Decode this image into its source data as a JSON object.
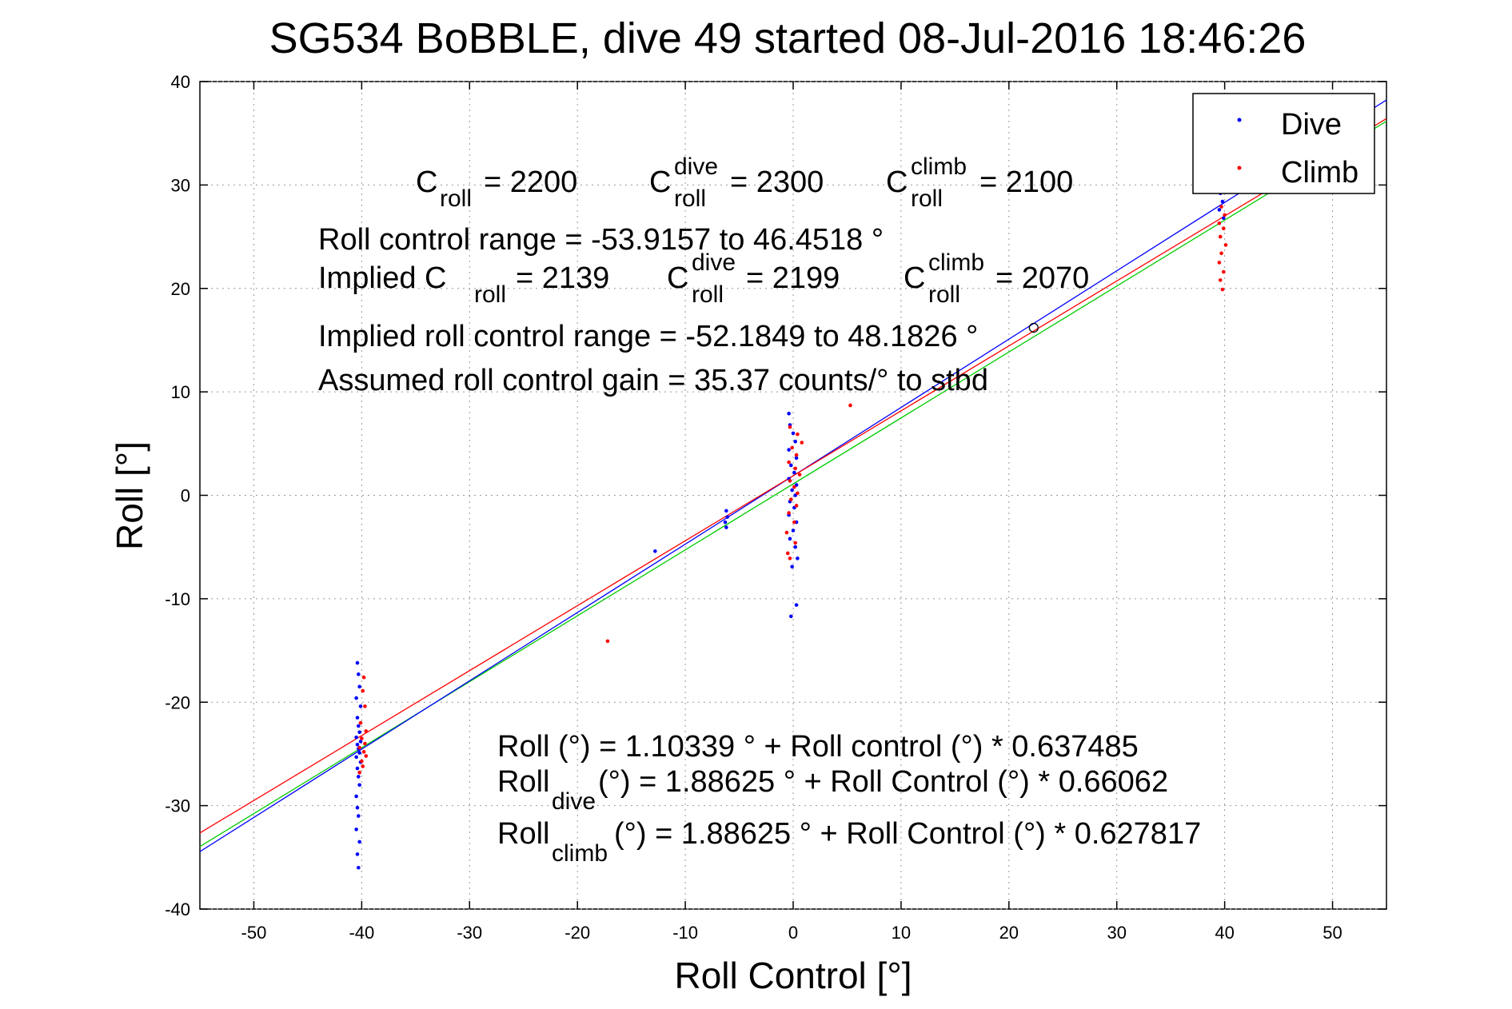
{
  "chart_data": {
    "type": "scatter",
    "title": "SG534 BoBBLE, dive 49 started 08-Jul-2016 18:46:26",
    "xlabel": "Roll Control [°]",
    "ylabel": "Roll [°]",
    "xlim": [
      -55,
      55
    ],
    "ylim": [
      -40,
      40
    ],
    "xticks": [
      -50,
      -40,
      -30,
      -20,
      -10,
      0,
      10,
      20,
      30,
      40,
      50
    ],
    "yticks": [
      -40,
      -30,
      -20,
      -10,
      0,
      10,
      20,
      30,
      40
    ],
    "grid": true,
    "legend_position": "top-right",
    "colors": {
      "dive": "#0000ff",
      "climb": "#ff0000",
      "fit_all": "#00cc00",
      "fit_dive": "#0000ff",
      "fit_climb": "#ff0000"
    },
    "series": [
      {
        "name": "Dive",
        "color": "#0000ff",
        "points": [
          [
            -40.4,
            -16.2
          ],
          [
            -40.3,
            -17.3
          ],
          [
            -40.2,
            -18.5
          ],
          [
            -40.5,
            -19.6
          ],
          [
            -40.1,
            -20.4
          ],
          [
            -40.4,
            -21.5
          ],
          [
            -40.3,
            -22.3
          ],
          [
            -40.2,
            -22.9
          ],
          [
            -40.5,
            -23.4
          ],
          [
            -40.1,
            -23.8
          ],
          [
            -40.4,
            -24.1
          ],
          [
            -40.3,
            -24.5
          ],
          [
            -40.2,
            -24.9
          ],
          [
            -40.5,
            -25.3
          ],
          [
            -40.1,
            -25.8
          ],
          [
            -40.4,
            -26.4
          ],
          [
            -40.3,
            -27.2
          ],
          [
            -40.2,
            -28.0
          ],
          [
            -40.5,
            -29.1
          ],
          [
            -40.4,
            -30.2
          ],
          [
            -40.3,
            -31.0
          ],
          [
            -40.5,
            -32.3
          ],
          [
            -40.2,
            -33.5
          ],
          [
            -40.4,
            -34.7
          ],
          [
            -40.3,
            -36.0
          ],
          [
            -12.8,
            -5.4
          ],
          [
            -6.2,
            -1.5
          ],
          [
            -6.1,
            -2.1
          ],
          [
            -6.3,
            -2.6
          ],
          [
            -6.2,
            -3.1
          ],
          [
            -0.4,
            7.9
          ],
          [
            -0.3,
            6.8
          ],
          [
            0.0,
            6.0
          ],
          [
            0.2,
            5.2
          ],
          [
            -0.4,
            4.4
          ],
          [
            0.3,
            3.6
          ],
          [
            -0.2,
            2.9
          ],
          [
            0.1,
            2.2
          ],
          [
            -0.4,
            1.6
          ],
          [
            0.3,
            1.0
          ],
          [
            -0.1,
            0.5
          ],
          [
            0.2,
            0.0
          ],
          [
            -0.3,
            -0.6
          ],
          [
            0.1,
            -1.2
          ],
          [
            -0.4,
            -1.9
          ],
          [
            0.3,
            -2.6
          ],
          [
            0.0,
            -3.4
          ],
          [
            -0.3,
            -4.2
          ],
          [
            0.2,
            -5.0
          ],
          [
            0.4,
            -6.1
          ],
          [
            -0.1,
            -6.9
          ],
          [
            0.3,
            -10.6
          ],
          [
            -0.2,
            -11.7
          ],
          [
            39.6,
            29.2
          ],
          [
            39.8,
            28.4
          ],
          [
            39.5,
            27.6
          ],
          [
            39.9,
            26.8
          ]
        ]
      },
      {
        "name": "Climb",
        "color": "#ff0000",
        "points": [
          [
            -39.8,
            -17.6
          ],
          [
            -39.9,
            -18.9
          ],
          [
            -39.7,
            -20.4
          ],
          [
            -40.1,
            -22.0
          ],
          [
            -39.6,
            -22.8
          ],
          [
            -40.0,
            -23.5
          ],
          [
            -39.7,
            -24.0
          ],
          [
            -40.2,
            -24.4
          ],
          [
            -39.8,
            -24.8
          ],
          [
            -39.6,
            -25.2
          ],
          [
            -40.0,
            -25.7
          ],
          [
            -39.9,
            -26.2
          ],
          [
            -40.2,
            -26.8
          ],
          [
            -17.2,
            -14.1
          ],
          [
            5.3,
            8.7
          ],
          [
            -0.3,
            6.6
          ],
          [
            0.4,
            5.9
          ],
          [
            0.8,
            5.1
          ],
          [
            -0.1,
            4.6
          ],
          [
            0.3,
            3.9
          ],
          [
            -0.4,
            3.2
          ],
          [
            0.2,
            2.6
          ],
          [
            0.6,
            2.0
          ],
          [
            -0.3,
            1.4
          ],
          [
            0.1,
            0.8
          ],
          [
            0.4,
            0.2
          ],
          [
            -0.2,
            -0.4
          ],
          [
            0.3,
            -1.0
          ],
          [
            -0.4,
            -1.7
          ],
          [
            0.1,
            -2.6
          ],
          [
            -0.6,
            -3.6
          ],
          [
            0.2,
            -4.6
          ],
          [
            -0.5,
            -5.6
          ],
          [
            -0.3,
            -6.1
          ],
          [
            39.7,
            27.9
          ],
          [
            40.0,
            27.1
          ],
          [
            39.5,
            26.3
          ],
          [
            39.9,
            25.8
          ],
          [
            39.6,
            25.0
          ],
          [
            40.1,
            24.2
          ],
          [
            39.7,
            23.4
          ],
          [
            39.5,
            22.5
          ],
          [
            39.9,
            21.6
          ],
          [
            39.6,
            20.8
          ],
          [
            39.8,
            19.9
          ]
        ]
      }
    ],
    "fit_lines": [
      {
        "label": "all",
        "color": "#00cc00",
        "intercept": 1.10339,
        "slope": 0.637485
      },
      {
        "label": "dive",
        "color": "#0000ff",
        "intercept": 1.88625,
        "slope": 0.66062
      },
      {
        "label": "climb",
        "color": "#ff0000",
        "intercept": 1.88625,
        "slope": 0.627817
      }
    ],
    "markers": [
      {
        "shape": "circle",
        "x": 22.3,
        "y": 16.2
      }
    ],
    "annotations": {
      "c_roll": {
        "base": "C",
        "sub": "roll",
        "value": "= 2200"
      },
      "c_roll_dive": {
        "base": "C",
        "sup": "dive",
        "sub": "roll",
        "value": "= 2300"
      },
      "c_roll_climb": {
        "base": "C",
        "sup": "climb",
        "sub": "roll",
        "value": "= 2100"
      },
      "range": "Roll control range = -53.9157 to 46.4518 °",
      "implied_prefix": "Implied C",
      "implied_sub": "roll",
      "implied_value": "= 2139",
      "implied_dive": {
        "base": "C",
        "sup": "dive",
        "sub": "roll",
        "value": "= 2199"
      },
      "implied_climb": {
        "base": "C",
        "sup": "climb",
        "sub": "roll",
        "value": "= 2070"
      },
      "implied_range": "Implied roll control range = -52.1849 to 48.1826 °",
      "gain": "Assumed roll control gain = 35.37 counts/° to stbd",
      "fit_all": "Roll (°) = 1.10339 ° + Roll control (°) * 0.637485",
      "fit_dive_base": "Roll",
      "fit_dive_sub": "dive",
      "fit_dive_rest": " (°) = 1.88625 ° + Roll Control (°) * 0.66062",
      "fit_climb_base": "Roll",
      "fit_climb_sub": "climb",
      "fit_climb_rest": " (°) = 1.88625 ° + Roll Control (°) * 0.627817"
    }
  }
}
